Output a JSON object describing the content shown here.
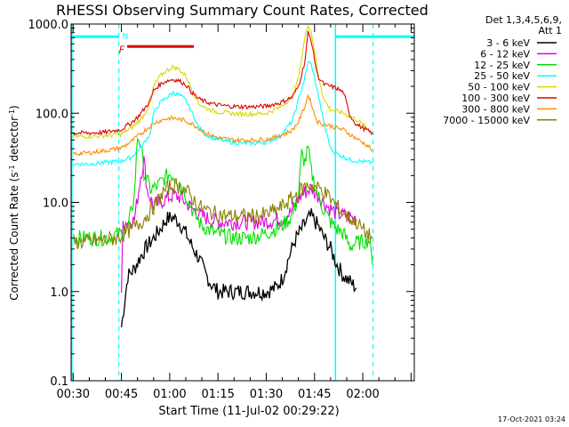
{
  "chart_data": {
    "type": "line",
    "title": "RHESSI Observing Summary Count Rates, Corrected",
    "xlabel": "Start Time (11-Jul-02 00:29:22)",
    "ylabel_prefix": "Corrected Count Rate (s",
    "ylabel_sup1": "-1",
    "ylabel_mid": " detector",
    "ylabel_sup2": "-1",
    "ylabel_suffix": ")",
    "y_scale": "log",
    "ylim": [
      0.1,
      1000
    ],
    "xlim_minutes": [
      29.37,
      136
    ],
    "x_tick_labels": [
      {
        "minutes": 30,
        "label": "00:30"
      },
      {
        "minutes": 45,
        "label": "00:45"
      },
      {
        "minutes": 60,
        "label": "01:00"
      },
      {
        "minutes": 75,
        "label": "01:15"
      },
      {
        "minutes": 90,
        "label": "01:30"
      },
      {
        "minutes": 105,
        "label": "01:45"
      },
      {
        "minutes": 120,
        "label": "02:00"
      }
    ],
    "y_tick_labels": [
      {
        "value": 0.1,
        "label": "0.1"
      },
      {
        "value": 1,
        "label": "1.0"
      },
      {
        "value": 10,
        "label": "10.0"
      },
      {
        "value": 100,
        "label": "100.0"
      },
      {
        "value": 1000,
        "label": "1000.0"
      }
    ],
    "legend_header": [
      "Det 1,3,4,5,6,9,",
      "Att 1"
    ],
    "series": [
      {
        "name": "3 - 6 keV",
        "color": "#000000",
        "points": [
          [
            45,
            0.4
          ],
          [
            47,
            1.5
          ],
          [
            49,
            1.8
          ],
          [
            51,
            2.5
          ],
          [
            53,
            3.2
          ],
          [
            55,
            4
          ],
          [
            57,
            5
          ],
          [
            59,
            6.5
          ],
          [
            61,
            6.8
          ],
          [
            63,
            6
          ],
          [
            65,
            4.5
          ],
          [
            67,
            3.2
          ],
          [
            69,
            2.4
          ],
          [
            71,
            1.6
          ],
          [
            73,
            1.2
          ],
          [
            75,
            1.0
          ],
          [
            80,
            1.0
          ],
          [
            85,
            1.0
          ],
          [
            90,
            1.0
          ],
          [
            93,
            1.1
          ],
          [
            95,
            1.4
          ],
          [
            97,
            2.4
          ],
          [
            99,
            3.8
          ],
          [
            101,
            5
          ],
          [
            103,
            6.5
          ],
          [
            104,
            7
          ],
          [
            106,
            5.5
          ],
          [
            108,
            4
          ],
          [
            110,
            3
          ],
          [
            112,
            2
          ],
          [
            114,
            1.5
          ],
          [
            118,
            1.1
          ]
        ]
      },
      {
        "name": "6 - 12 keV",
        "color": "#e000e0",
        "points": [
          [
            45,
            1.0
          ],
          [
            45.5,
            6
          ],
          [
            47,
            6.1
          ],
          [
            49,
            6.3
          ],
          [
            51,
            20
          ],
          [
            52,
            30
          ],
          [
            53,
            14
          ],
          [
            55,
            9
          ],
          [
            57,
            10
          ],
          [
            59,
            11
          ],
          [
            61,
            12
          ],
          [
            63,
            11.5
          ],
          [
            65,
            10
          ],
          [
            67,
            8.5
          ],
          [
            70,
            7
          ],
          [
            73,
            6.3
          ],
          [
            76,
            6
          ],
          [
            80,
            6
          ],
          [
            85,
            6
          ],
          [
            90,
            6.1
          ],
          [
            95,
            6.5
          ],
          [
            98,
            8
          ],
          [
            100,
            11
          ],
          [
            102,
            13
          ],
          [
            104,
            14.5
          ],
          [
            105,
            13
          ],
          [
            107,
            11
          ],
          [
            109,
            9
          ],
          [
            112,
            7.5
          ],
          [
            115,
            7
          ],
          [
            118,
            6.5
          ]
        ]
      },
      {
        "name": "12 - 25 keV",
        "color": "#00e000",
        "points": [
          [
            30,
            4
          ],
          [
            35,
            4
          ],
          [
            40,
            4
          ],
          [
            45,
            4.5
          ],
          [
            47,
            5
          ],
          [
            49,
            12
          ],
          [
            50,
            55
          ],
          [
            51,
            45
          ],
          [
            52,
            22
          ],
          [
            54,
            14
          ],
          [
            56,
            15
          ],
          [
            58,
            18
          ],
          [
            60,
            21
          ],
          [
            62,
            19
          ],
          [
            64,
            15
          ],
          [
            66,
            10
          ],
          [
            68,
            7
          ],
          [
            70,
            5.5
          ],
          [
            74,
            4.5
          ],
          [
            80,
            4
          ],
          [
            85,
            4
          ],
          [
            90,
            4.5
          ],
          [
            95,
            5.5
          ],
          [
            98,
            7
          ],
          [
            100,
            12
          ],
          [
            101,
            35
          ],
          [
            102,
            28
          ],
          [
            103,
            40
          ],
          [
            104,
            22
          ],
          [
            106,
            12
          ],
          [
            108,
            8
          ],
          [
            110,
            6
          ],
          [
            112,
            5
          ],
          [
            114,
            4.5
          ],
          [
            116,
            3.2
          ],
          [
            118,
            3.5
          ],
          [
            122,
            3.8
          ],
          [
            123,
            2
          ]
        ]
      },
      {
        "name": "25 - 50 keV",
        "color": "#00ffff",
        "points": [
          [
            30,
            27
          ],
          [
            35,
            27
          ],
          [
            40,
            28
          ],
          [
            45,
            29
          ],
          [
            48,
            32
          ],
          [
            50,
            38
          ],
          [
            52,
            46
          ],
          [
            54,
            60
          ],
          [
            55,
            100
          ],
          [
            57,
            130
          ],
          [
            59,
            150
          ],
          [
            61,
            170
          ],
          [
            63,
            160
          ],
          [
            65,
            140
          ],
          [
            67,
            100
          ],
          [
            69,
            70
          ],
          [
            71,
            58
          ],
          [
            74,
            52
          ],
          [
            78,
            48
          ],
          [
            82,
            46
          ],
          [
            86,
            46
          ],
          [
            90,
            47
          ],
          [
            94,
            55
          ],
          [
            98,
            80
          ],
          [
            100,
            140
          ],
          [
            102,
            250
          ],
          [
            103,
            380
          ],
          [
            104,
            350
          ],
          [
            105,
            250
          ],
          [
            106,
            170
          ],
          [
            108,
            75
          ],
          [
            110,
            40
          ],
          [
            112,
            35
          ],
          [
            116,
            30
          ],
          [
            122,
            28
          ],
          [
            123,
            28
          ]
        ]
      },
      {
        "name": "50 - 100 keV",
        "color": "#d8d800",
        "points": [
          [
            30,
            55
          ],
          [
            35,
            55
          ],
          [
            40,
            56
          ],
          [
            45,
            58
          ],
          [
            48,
            68
          ],
          [
            50,
            78
          ],
          [
            52,
            95
          ],
          [
            54,
            130
          ],
          [
            55,
            200
          ],
          [
            57,
            260
          ],
          [
            59,
            300
          ],
          [
            61,
            330
          ],
          [
            63,
            310
          ],
          [
            65,
            260
          ],
          [
            67,
            180
          ],
          [
            69,
            130
          ],
          [
            71,
            115
          ],
          [
            74,
            105
          ],
          [
            78,
            100
          ],
          [
            82,
            98
          ],
          [
            86,
            98
          ],
          [
            90,
            100
          ],
          [
            94,
            115
          ],
          [
            98,
            150
          ],
          [
            100,
            250
          ],
          [
            102,
            700
          ],
          [
            103,
            1000
          ],
          [
            104,
            800
          ],
          [
            105,
            500
          ],
          [
            106,
            280
          ],
          [
            108,
            140
          ],
          [
            110,
            110
          ],
          [
            114,
            100
          ],
          [
            118,
            85
          ],
          [
            122,
            65
          ],
          [
            123,
            60
          ]
        ]
      },
      {
        "name": "100 - 300 keV",
        "color": "#e00000",
        "points": [
          [
            30,
            60
          ],
          [
            35,
            60
          ],
          [
            40,
            61
          ],
          [
            45,
            66
          ],
          [
            48,
            78
          ],
          [
            50,
            90
          ],
          [
            52,
            110
          ],
          [
            54,
            140
          ],
          [
            55,
            180
          ],
          [
            57,
            210
          ],
          [
            59,
            230
          ],
          [
            61,
            240
          ],
          [
            63,
            230
          ],
          [
            65,
            210
          ],
          [
            67,
            170
          ],
          [
            69,
            145
          ],
          [
            71,
            135
          ],
          [
            74,
            125
          ],
          [
            78,
            120
          ],
          [
            82,
            118
          ],
          [
            86,
            118
          ],
          [
            90,
            120
          ],
          [
            94,
            130
          ],
          [
            98,
            150
          ],
          [
            100,
            200
          ],
          [
            102,
            380
          ],
          [
            103,
            800
          ],
          [
            104,
            650
          ],
          [
            105,
            400
          ],
          [
            106,
            260
          ],
          [
            108,
            210
          ],
          [
            110,
            200
          ],
          [
            112,
            190
          ],
          [
            114,
            170
          ],
          [
            116,
            95
          ],
          [
            118,
            75
          ],
          [
            122,
            62
          ],
          [
            123,
            60
          ]
        ]
      },
      {
        "name": "300 - 800 keV",
        "color": "#ff8c00",
        "points": [
          [
            30,
            35
          ],
          [
            35,
            36
          ],
          [
            40,
            38
          ],
          [
            45,
            41
          ],
          [
            48,
            48
          ],
          [
            50,
            55
          ],
          [
            52,
            63
          ],
          [
            54,
            72
          ],
          [
            56,
            80
          ],
          [
            58,
            85
          ],
          [
            60,
            88
          ],
          [
            62,
            87
          ],
          [
            64,
            84
          ],
          [
            66,
            79
          ],
          [
            68,
            72
          ],
          [
            70,
            64
          ],
          [
            72,
            58
          ],
          [
            75,
            53
          ],
          [
            80,
            50
          ],
          [
            85,
            50
          ],
          [
            90,
            51
          ],
          [
            94,
            55
          ],
          [
            98,
            64
          ],
          [
            100,
            80
          ],
          [
            102,
            120
          ],
          [
            103,
            160
          ],
          [
            104,
            130
          ],
          [
            105,
            95
          ],
          [
            106,
            80
          ],
          [
            108,
            75
          ],
          [
            110,
            72
          ],
          [
            114,
            65
          ],
          [
            118,
            52
          ],
          [
            122,
            42
          ],
          [
            123,
            38
          ]
        ]
      },
      {
        "name": "7000 - 15000 keV",
        "color": "#8b7d00",
        "points": [
          [
            30,
            3.6
          ],
          [
            35,
            3.6
          ],
          [
            40,
            3.8
          ],
          [
            44,
            4
          ],
          [
            46,
            4.5
          ],
          [
            48,
            5
          ],
          [
            50,
            5.5
          ],
          [
            52,
            6.5
          ],
          [
            54,
            8
          ],
          [
            56,
            10
          ],
          [
            58,
            13
          ],
          [
            60,
            15
          ],
          [
            62,
            15.5
          ],
          [
            64,
            14.5
          ],
          [
            66,
            12.5
          ],
          [
            68,
            10
          ],
          [
            70,
            8.5
          ],
          [
            74,
            7.5
          ],
          [
            78,
            7
          ],
          [
            82,
            7
          ],
          [
            86,
            7
          ],
          [
            90,
            7.3
          ],
          [
            94,
            8.5
          ],
          [
            98,
            11
          ],
          [
            101,
            14
          ],
          [
            103,
            15.5
          ],
          [
            105,
            15
          ],
          [
            107,
            14
          ],
          [
            109,
            12
          ],
          [
            112,
            9
          ],
          [
            115,
            7
          ],
          [
            118,
            6
          ],
          [
            121,
            4.5
          ],
          [
            123,
            4
          ]
        ]
      }
    ],
    "vertical_lines": {
      "solid_minutes": [
        29.6,
        111.5
      ],
      "dashed_minutes": [
        44.2,
        123.2
      ]
    },
    "flag_markers": {
      "N": {
        "minutes": 46.2,
        "value": 750
      },
      "F": {
        "minutes": 46.2,
        "value": 520
      },
      "night_bar_left": {
        "from": 29.37,
        "to": 44.2,
        "value": 720
      },
      "night_bar_right": {
        "from": 111.5,
        "to": 136,
        "value": 720
      },
      "flare_bar": {
        "from": 46.8,
        "to": 67.5,
        "value": 560
      }
    },
    "colors": {
      "flare_bar": "#e00000",
      "night_bar": "#00ffff",
      "marker_N": "#00ffff",
      "marker_F": "#e00000",
      "axis": "#000000"
    }
  },
  "footer_timestamp": "17-Oct-2021 03:24"
}
